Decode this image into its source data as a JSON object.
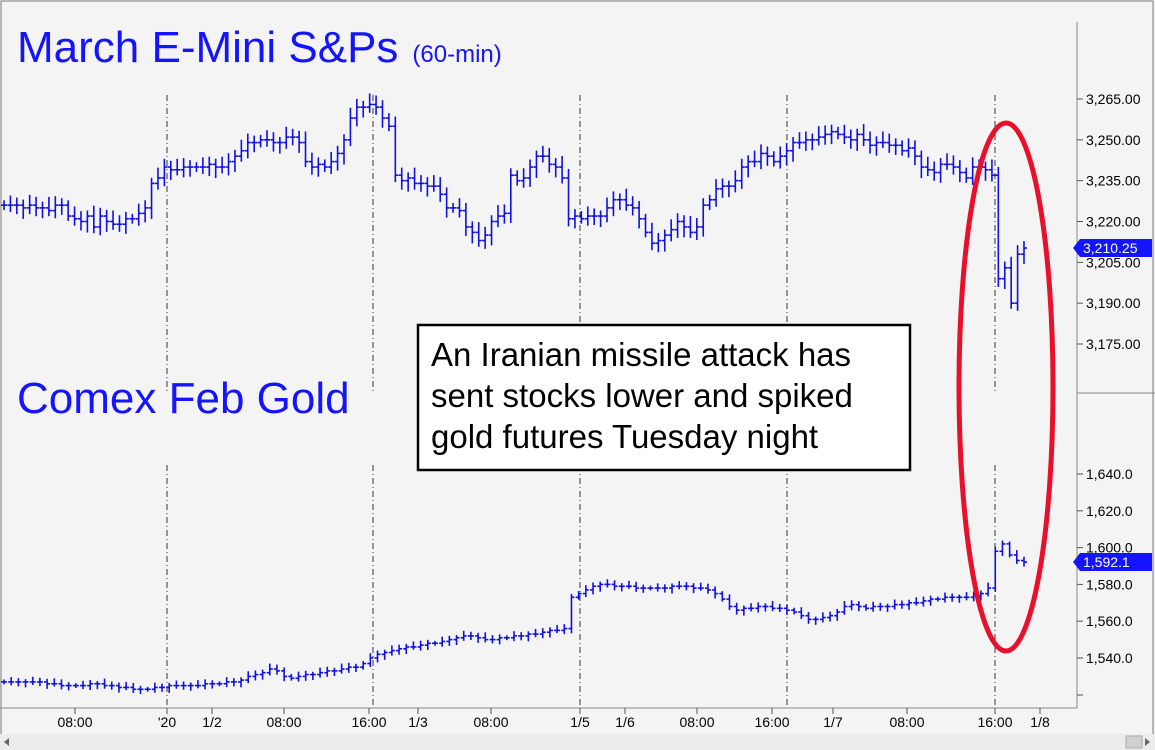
{
  "colors": {
    "background": "#f4f4f4",
    "bars": "#1010e0",
    "title": "#1414ff",
    "highlight": "#e8102a",
    "price_tag": "#1414ff"
  },
  "chart_data": [
    {
      "type": "ohlc",
      "title": "March E-Mini S&Ps",
      "subtitle": "(60-min)",
      "ylim": [
        3155,
        3280
      ],
      "yticks": [
        3265.0,
        3250.0,
        3235.0,
        3220.0,
        3205.0,
        3190.0,
        3175.0
      ],
      "ytick_labels": [
        "3,265.00",
        "3,250.00",
        "3,235.00",
        "3,220.00",
        "3,205.00",
        "3,190.00",
        "3,175.00"
      ],
      "last_price": 3210.25,
      "last_price_label": "3,210.25",
      "series": [
        {
          "values": [
            3226,
            3226,
            3226,
            3225,
            3226,
            3225,
            3225,
            3224,
            3226,
            3226,
            3222,
            3221,
            3220,
            3222,
            3218,
            3222,
            3220,
            3219,
            3219,
            3221,
            3221,
            3223,
            3225,
            3234,
            3236,
            3240,
            3239,
            3239,
            3240,
            3240,
            3240,
            3240,
            3241,
            3240,
            3240,
            3242,
            3244,
            3246,
            3249,
            3249,
            3250,
            3250,
            3249,
            3249,
            3251,
            3251,
            3249,
            3242,
            3240,
            3241,
            3240,
            3242,
            3245,
            3250,
            3258,
            3262,
            3262,
            3263,
            3262,
            3258,
            3255,
            3237,
            3235,
            3236,
            3234,
            3234,
            3233,
            3233,
            3230,
            3225,
            3225,
            3224,
            3218,
            3216,
            3213,
            3215,
            3220,
            3222,
            3223,
            3237,
            3235,
            3236,
            3240,
            3244,
            3244,
            3241,
            3240,
            3236,
            3221,
            3222,
            3221,
            3222,
            3222,
            3222,
            3225,
            3228,
            3228,
            3226,
            3225,
            3221,
            3216,
            3212,
            3213,
            3215,
            3217,
            3220,
            3218,
            3216,
            3218,
            3226,
            3228,
            3232,
            3233,
            3233,
            3235,
            3240,
            3242,
            3242,
            3245,
            3244,
            3242,
            3244,
            3246,
            3249,
            3249,
            3250,
            3250,
            3251,
            3252,
            3253,
            3252,
            3251,
            3250,
            3252,
            3250,
            3248,
            3249,
            3249,
            3248,
            3248,
            3246,
            3247,
            3244,
            3240,
            3239,
            3238,
            3241,
            3241,
            3240,
            3238,
            3236,
            3240,
            3240,
            3239,
            3237,
            3199,
            3203,
            3190,
            3208,
            3210.25
          ]
        }
      ]
    },
    {
      "type": "ohlc",
      "title": "Comex Feb Gold",
      "ylim": [
        1525,
        1648
      ],
      "yticks": [
        1640.0,
        1620.0,
        1600.0,
        1580.0,
        1560.0,
        1540.0
      ],
      "ytick_labels": [
        "1,640.0",
        "1,620.0",
        "1,600.0",
        "1,580.0",
        "1,560.0",
        "1,540.0"
      ],
      "last_price": 1592.1,
      "last_price_label": "1,592.1",
      "series": [
        {
          "values": [
            1527,
            1527,
            1527,
            1527,
            1527,
            1527,
            1526,
            1526,
            1525,
            1525,
            1525,
            1525,
            1526,
            1526,
            1525,
            1525,
            1524,
            1524,
            1523,
            1523,
            1523,
            1524,
            1524,
            1525,
            1525,
            1525,
            1525,
            1525,
            1526,
            1526,
            1526,
            1527,
            1527,
            1528,
            1530,
            1531,
            1532,
            1534,
            1533,
            1530,
            1529,
            1530,
            1531,
            1531,
            1532,
            1533,
            1533,
            1534,
            1535,
            1535,
            1537,
            1540,
            1542,
            1543,
            1544,
            1545,
            1546,
            1546,
            1547,
            1548,
            1548,
            1549,
            1550,
            1551,
            1552,
            1552,
            1551,
            1550,
            1550,
            1551,
            1551,
            1552,
            1552,
            1553,
            1553,
            1554,
            1555,
            1555,
            1556,
            1573,
            1575,
            1577,
            1579,
            1580,
            1580,
            1579,
            1579,
            1579,
            1578,
            1578,
            1578,
            1578,
            1578,
            1579,
            1579,
            1579,
            1578,
            1578,
            1577,
            1575,
            1572,
            1568,
            1566,
            1567,
            1567,
            1568,
            1568,
            1567,
            1567,
            1566,
            1565,
            1563,
            1561,
            1561,
            1562,
            1563,
            1565,
            1568,
            1569,
            1568,
            1567,
            1568,
            1568,
            1568,
            1569,
            1569,
            1570,
            1570,
            1571,
            1572,
            1572,
            1573,
            1573,
            1573,
            1573,
            1574,
            1575,
            1578,
            1598,
            1602,
            1596,
            1593,
            1592.1
          ]
        }
      ]
    }
  ],
  "x_axis": {
    "labels": [
      "08:00",
      "'20",
      "1/2",
      "08:00",
      "16:00",
      "1/3",
      "08:00",
      "1/5",
      "1/6",
      "08:00",
      "16:00",
      "1/7",
      "08:00",
      "16:00",
      "1/8"
    ]
  },
  "annotation": {
    "lines": [
      "An Iranian missile attack has",
      "sent stocks lower and spiked",
      "gold futures Tuesday night"
    ]
  }
}
